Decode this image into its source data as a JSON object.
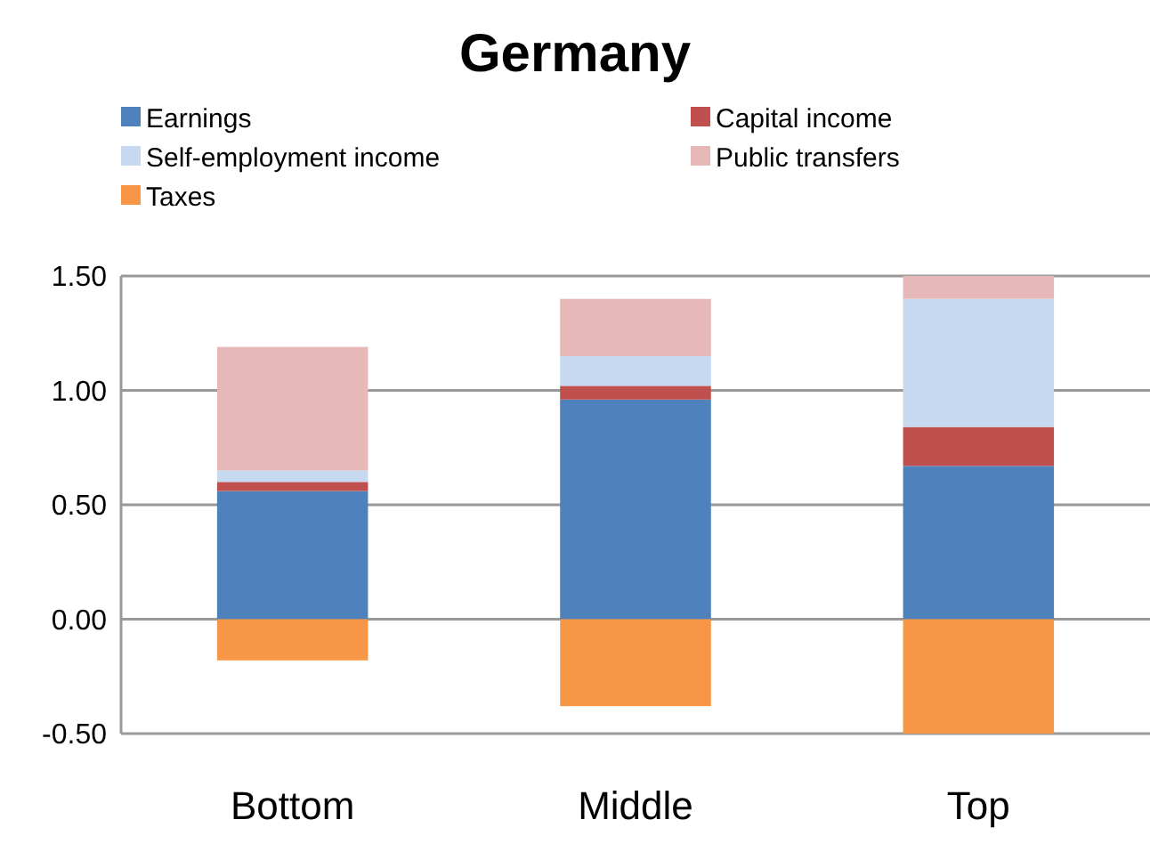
{
  "chart_data": {
    "type": "bar",
    "title": "Germany",
    "categories": [
      "Bottom",
      "Middle",
      "Top"
    ],
    "stacked": true,
    "series": [
      {
        "name": "Earnings",
        "color": "#4f81bd",
        "values": [
          0.56,
          0.96,
          0.67
        ]
      },
      {
        "name": "Capital income",
        "color": "#c0504d",
        "values": [
          0.04,
          0.06,
          0.17
        ]
      },
      {
        "name": "Self-employment income",
        "color": "#c6d9f0",
        "values": [
          0.05,
          0.13,
          0.56
        ]
      },
      {
        "name": "Public transfers",
        "color": "#e6b9b8",
        "values": [
          0.54,
          0.25,
          0.1
        ]
      },
      {
        "name": "Taxes",
        "color": "#f79646",
        "values": [
          -0.18,
          -0.38,
          -0.5
        ]
      }
    ],
    "ylim": [
      -0.5,
      1.5
    ],
    "yticks": [
      {
        "value": -0.5,
        "label": "-0.50"
      },
      {
        "value": 0,
        "label": "0.00"
      },
      {
        "value": 0.5,
        "label": "0.50"
      },
      {
        "value": 1,
        "label": "1.00"
      },
      {
        "value": 1.5,
        "label": "1.50"
      }
    ],
    "grid": "y",
    "legend": "top"
  }
}
